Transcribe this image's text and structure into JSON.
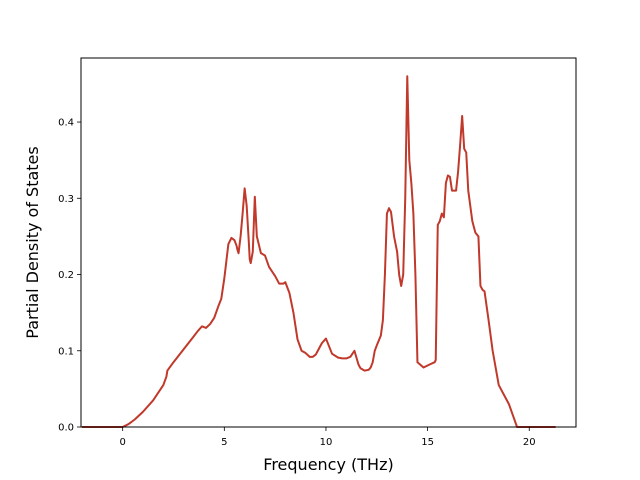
{
  "chart_data": {
    "type": "line",
    "title": "",
    "xlabel": "Frequency (THz)",
    "ylabel": "Partial Density of States",
    "xlim": [
      -2.05,
      22.3
    ],
    "ylim": [
      0.0,
      0.484
    ],
    "xticks": [
      0,
      5,
      10,
      15,
      20
    ],
    "xtick_labels": [
      "0",
      "5",
      "10",
      "15",
      "20"
    ],
    "yticks": [
      0.0,
      0.1,
      0.2,
      0.3,
      0.4
    ],
    "ytick_labels": [
      "0.0",
      "0.1",
      "0.2",
      "0.3",
      "0.4"
    ],
    "grid": false,
    "legend": null,
    "line_color": "#c0392b",
    "series": [
      {
        "x": [
          -2.0,
          0.0,
          0.3,
          0.6,
          1.0,
          1.5,
          2.0,
          2.15,
          2.2,
          2.5,
          3.0,
          3.5,
          3.7,
          3.9,
          4.1,
          4.3,
          4.5,
          4.7,
          4.85,
          5.0,
          5.2,
          5.35,
          5.5,
          5.6,
          5.65,
          5.7,
          5.8,
          5.9,
          6.0,
          6.1,
          6.2,
          6.25,
          6.3,
          6.4,
          6.5,
          6.6,
          6.8,
          7.0,
          7.2,
          7.5,
          7.7,
          7.9,
          8.0,
          8.1,
          8.2,
          8.4,
          8.6,
          8.8,
          9.0,
          9.2,
          9.35,
          9.5,
          9.6,
          9.8,
          10.0,
          10.3,
          10.6,
          10.8,
          10.9,
          11.0,
          11.2,
          11.4,
          11.6,
          11.7,
          11.9,
          12.1,
          12.2,
          12.3,
          12.4,
          12.5,
          12.7,
          12.8,
          12.9,
          13.0,
          13.1,
          13.2,
          13.35,
          13.5,
          13.6,
          13.7,
          13.8,
          13.9,
          14.0,
          14.1,
          14.2,
          14.3,
          14.4,
          14.5,
          14.8,
          15.1,
          15.35,
          15.4,
          15.5,
          15.6,
          15.7,
          15.8,
          15.9,
          16.0,
          16.1,
          16.2,
          16.4,
          16.5,
          16.6,
          16.7,
          16.8,
          16.9,
          17.0,
          17.1,
          17.2,
          17.35,
          17.5,
          17.6,
          17.7,
          17.8,
          18.0,
          18.2,
          18.5,
          18.8,
          19.0,
          19.2,
          19.4,
          19.5,
          20.0,
          21.3
        ],
        "y": [
          0.0,
          0.0,
          0.004,
          0.01,
          0.02,
          0.035,
          0.055,
          0.066,
          0.074,
          0.085,
          0.102,
          0.119,
          0.126,
          0.132,
          0.13,
          0.135,
          0.143,
          0.158,
          0.168,
          0.195,
          0.24,
          0.248,
          0.245,
          0.238,
          0.232,
          0.228,
          0.25,
          0.28,
          0.313,
          0.29,
          0.245,
          0.22,
          0.215,
          0.23,
          0.302,
          0.25,
          0.228,
          0.225,
          0.21,
          0.198,
          0.188,
          0.188,
          0.19,
          0.183,
          0.176,
          0.15,
          0.115,
          0.1,
          0.097,
          0.092,
          0.092,
          0.095,
          0.1,
          0.11,
          0.116,
          0.096,
          0.091,
          0.09,
          0.09,
          0.09,
          0.092,
          0.1,
          0.082,
          0.077,
          0.074,
          0.075,
          0.078,
          0.085,
          0.1,
          0.107,
          0.12,
          0.14,
          0.2,
          0.28,
          0.287,
          0.282,
          0.25,
          0.23,
          0.2,
          0.185,
          0.2,
          0.3,
          0.46,
          0.35,
          0.32,
          0.28,
          0.2,
          0.085,
          0.078,
          0.082,
          0.085,
          0.088,
          0.265,
          0.27,
          0.28,
          0.275,
          0.32,
          0.33,
          0.328,
          0.31,
          0.31,
          0.335,
          0.37,
          0.408,
          0.365,
          0.36,
          0.31,
          0.29,
          0.27,
          0.255,
          0.25,
          0.185,
          0.18,
          0.178,
          0.14,
          0.1,
          0.055,
          0.04,
          0.03,
          0.015,
          0.0,
          0.0,
          0.0,
          0.0
        ]
      }
    ]
  }
}
